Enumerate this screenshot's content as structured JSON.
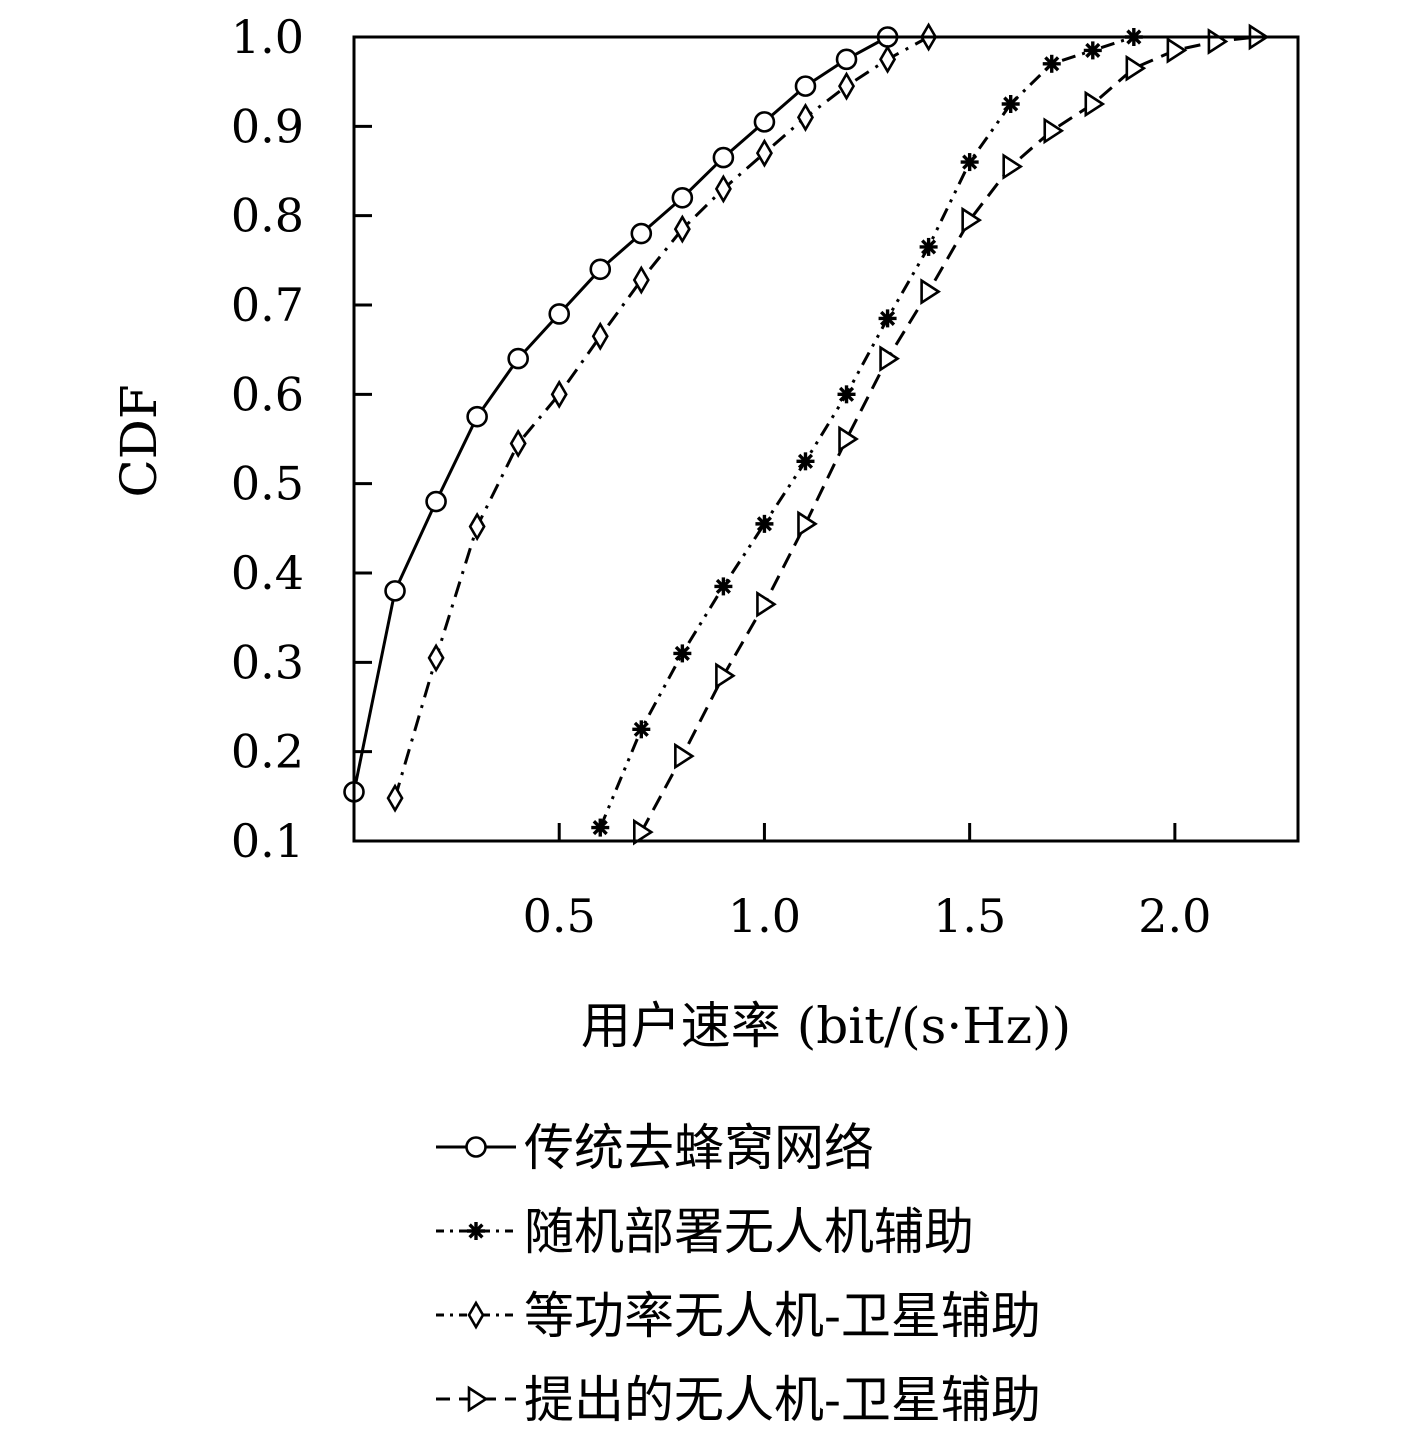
{
  "chart_data": {
    "type": "line",
    "title": "",
    "xlabel": "用户速率 (bit/(s·Hz))",
    "ylabel": "CDF",
    "xlim": [
      0.0,
      2.3
    ],
    "ylim": [
      0.1,
      1.0
    ],
    "xticks": [
      0.5,
      1.0,
      1.5,
      2.0
    ],
    "xtick_labels": [
      "0.5",
      "1.0",
      "1.5",
      "2.0"
    ],
    "yticks": [
      0.1,
      0.2,
      0.3,
      0.4,
      0.5,
      0.6,
      0.7,
      0.8,
      0.9,
      1.0
    ],
    "ytick_labels": [
      "0.1",
      "0.2",
      "0.3",
      "0.4",
      "0.5",
      "0.6",
      "0.7",
      "0.8",
      "0.9",
      "1.0"
    ],
    "grid": false,
    "legend_position": "below",
    "series": [
      {
        "name": "传统去蜂窝网络",
        "line_style": "solid",
        "marker": "circle",
        "x": [
          0.0,
          0.1,
          0.2,
          0.3,
          0.4,
          0.5,
          0.6,
          0.7,
          0.8,
          0.9,
          1.0,
          1.1,
          1.2,
          1.3,
          1.4,
          1.5,
          1.6,
          1.7,
          1.8,
          1.9,
          2.0,
          2.1,
          2.2,
          2.3
        ],
        "y": [
          0.155,
          0.38,
          0.48,
          0.575,
          0.64,
          0.69,
          0.74,
          0.78,
          0.82,
          0.865,
          0.905,
          0.945,
          0.975,
          1.0,
          1.0,
          1.0,
          1.0,
          1.0,
          1.0,
          1.0,
          1.0,
          1.0,
          1.0,
          1.0
        ],
        "marker_x": [
          0.0,
          0.1,
          0.2,
          0.3,
          0.4,
          0.5,
          0.6,
          0.7,
          0.8,
          0.9,
          1.0,
          1.1,
          1.2,
          1.3
        ]
      },
      {
        "name": "随机部署无人机辅助",
        "line_style": "dash-dot-dot",
        "marker": "asterisk",
        "x": [
          0.6,
          0.7,
          0.8,
          0.9,
          1.0,
          1.1,
          1.2,
          1.3,
          1.4,
          1.5,
          1.6,
          1.7,
          1.8,
          1.9,
          2.0,
          2.1,
          2.2,
          2.3
        ],
        "y": [
          0.115,
          0.225,
          0.31,
          0.385,
          0.455,
          0.525,
          0.6,
          0.685,
          0.765,
          0.86,
          0.925,
          0.97,
          0.985,
          1.0,
          1.0,
          1.0,
          1.0,
          1.0
        ],
        "marker_x": [
          0.6,
          0.7,
          0.8,
          0.9,
          1.0,
          1.1,
          1.2,
          1.3,
          1.4,
          1.5,
          1.6,
          1.7,
          1.8,
          1.9
        ]
      },
      {
        "name": "等功率无人机-卫星辅助",
        "line_style": "dash-dot",
        "marker": "diamond",
        "x": [
          0.1,
          0.2,
          0.3,
          0.4,
          0.5,
          0.6,
          0.7,
          0.8,
          0.9,
          1.0,
          1.1,
          1.2,
          1.3,
          1.4,
          1.5
        ],
        "y": [
          0.148,
          0.305,
          0.452,
          0.545,
          0.6,
          0.665,
          0.728,
          0.785,
          0.83,
          0.87,
          0.91,
          0.945,
          0.975,
          1.0,
          1.0
        ],
        "marker_x": [
          0.1,
          0.2,
          0.3,
          0.4,
          0.5,
          0.6,
          0.7,
          0.8,
          0.9,
          1.0,
          1.1,
          1.2,
          1.3,
          1.4
        ]
      },
      {
        "name": "提出的无人机-卫星辅助",
        "line_style": "dashed",
        "marker": "triangle-right",
        "x": [
          0.7,
          0.8,
          0.9,
          1.0,
          1.1,
          1.2,
          1.3,
          1.4,
          1.5,
          1.6,
          1.7,
          1.8,
          1.9,
          2.0,
          2.1,
          2.2
        ],
        "y": [
          0.11,
          0.195,
          0.285,
          0.365,
          0.455,
          0.55,
          0.64,
          0.715,
          0.795,
          0.855,
          0.895,
          0.925,
          0.965,
          0.985,
          0.995,
          1.0
        ],
        "marker_x": [
          0.7,
          0.8,
          0.9,
          1.0,
          1.1,
          1.2,
          1.3,
          1.4,
          1.5,
          1.6,
          1.7,
          1.8,
          1.9,
          2.0,
          2.1,
          2.2
        ]
      }
    ]
  }
}
